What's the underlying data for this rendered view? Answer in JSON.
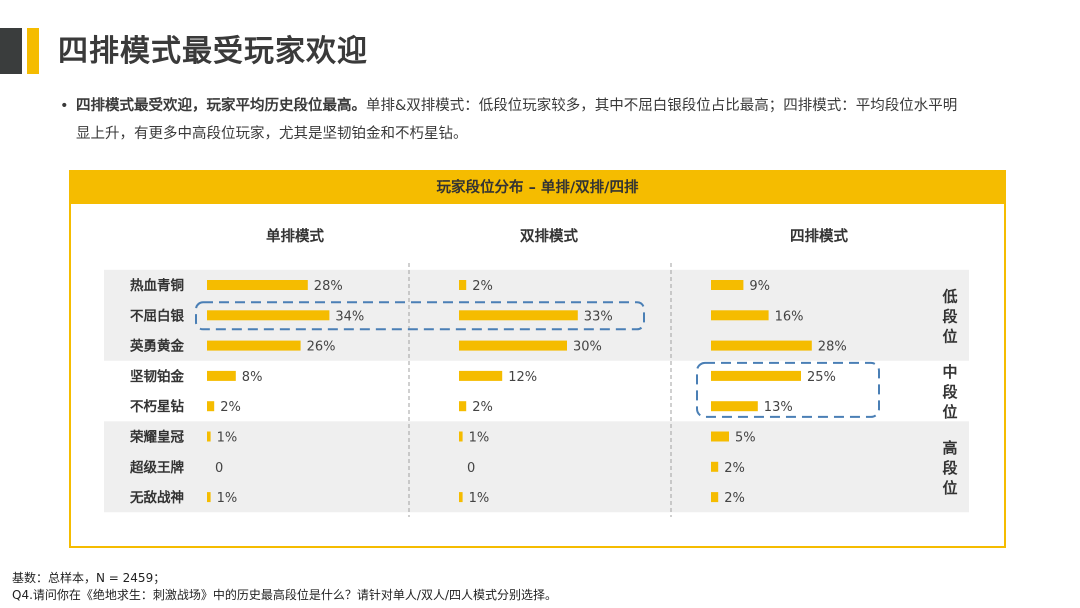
{
  "title": "四排模式最受玩家欢迎",
  "bullet": {
    "bold": "四排模式最受欢迎，玩家平均历史段位最高。",
    "normal": "单排&双排模式：低段位玩家较多，其中不屈白银段位占比最高；四排模式：平均段位水平明显上升，有更多中高段位玩家，尤其是坚韧铂金和不朽星钻。"
  },
  "chart_data": {
    "type": "bar",
    "title": "玩家段位分布 – 单排/双排/四排",
    "categories": [
      "热血青铜",
      "不屈白银",
      "英勇黄金",
      "坚韧铂金",
      "不朽星钻",
      "荣耀皇冠",
      "超级王牌",
      "无敌战神"
    ],
    "series": [
      {
        "name": "单排模式",
        "values": [
          28,
          34,
          26,
          8,
          2,
          1,
          0,
          1
        ]
      },
      {
        "name": "双排模式",
        "values": [
          2,
          33,
          30,
          12,
          2,
          1,
          0,
          1
        ]
      },
      {
        "name": "四排模式",
        "values": [
          9,
          16,
          28,
          25,
          13,
          5,
          2,
          2
        ]
      }
    ],
    "labels": [
      [
        "28%",
        "34%",
        "26%",
        "8%",
        "2%",
        "1%",
        "0",
        "1%"
      ],
      [
        "2%",
        "33%",
        "30%",
        "12%",
        "2%",
        "1%",
        "0",
        "1%"
      ],
      [
        "9%",
        "16%",
        "28%",
        "25%",
        "13%",
        "5%",
        "2%",
        "2%"
      ]
    ],
    "groups": [
      {
        "label": "低段位",
        "rows": [
          0,
          1,
          2
        ]
      },
      {
        "label": "中段位",
        "rows": [
          3,
          4
        ]
      },
      {
        "label": "高段位",
        "rows": [
          5,
          6,
          7
        ]
      }
    ],
    "colors": {
      "bar": "#f5bc00",
      "band": "#efefef",
      "highlight": "#4a7fb5",
      "frame": "#f5bc00"
    }
  },
  "footnote": {
    "line1": "基数：总样本，N = 2459；",
    "line2": "Q4.请问你在《绝地求生：刺激战场》中的历史最高段位是什么？请针对单人/双人/四人模式分别选择。"
  }
}
